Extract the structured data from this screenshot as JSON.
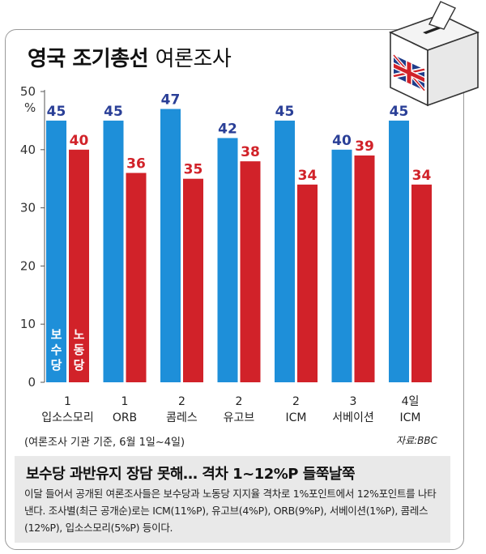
{
  "title": {
    "bold": "영국 조기총선",
    "light": "여론조사"
  },
  "unit": "%",
  "colors": {
    "conservative": "#1e8fd9",
    "labour": "#d12229",
    "conservative_value": "#2a3f97",
    "labour_value": "#d12229"
  },
  "chart_data": {
    "type": "bar",
    "ylim": [
      0,
      50
    ],
    "yticks": [
      0,
      10,
      20,
      30,
      40,
      50
    ],
    "categories": [
      [
        "1",
        "입소스모리"
      ],
      [
        "1",
        "ORB"
      ],
      [
        "2",
        "콤레스"
      ],
      [
        "2",
        "유고브"
      ],
      [
        "2",
        "ICM"
      ],
      [
        "3",
        "서베이션"
      ],
      [
        "4일",
        "ICM"
      ]
    ],
    "series": [
      {
        "name": "보수당",
        "values": [
          45,
          45,
          47,
          42,
          45,
          40,
          45
        ]
      },
      {
        "name": "노동당",
        "values": [
          40,
          36,
          35,
          38,
          34,
          39,
          34
        ]
      }
    ]
  },
  "caption": "(여론조사 기관 기준, 6월 1일~4일)",
  "source": "자료:BBC",
  "headline": "보수당 과반유지 장담 못해… 격차 1~12%P 들쭉날쭉",
  "description": "이달 들어서 공개된 여론조사들은 보수당과 노동당 지지율 격차로 1%포인트에서 12%포인트를 나타낸다. 조사별(최근 공개순)로는 ICM(11%P), 유고브(4%P), ORB(9%P), 서베이션(1%P), 콤레스(12%P), 입소스모리(5%P) 등이다."
}
